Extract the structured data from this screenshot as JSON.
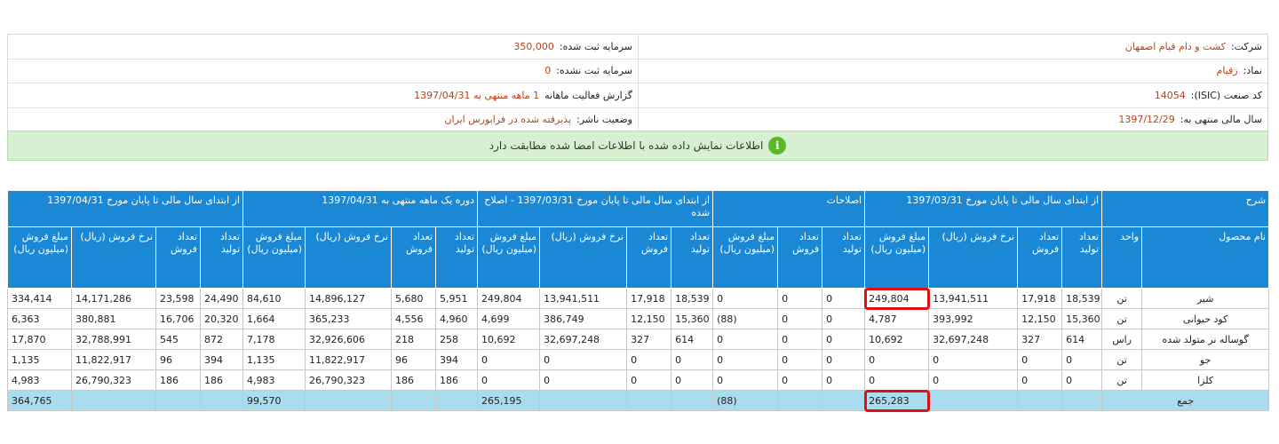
{
  "info": {
    "left": [
      {
        "label": "شرکت:",
        "value": "کشت و دام قیام اصفهان"
      },
      {
        "label": "نماد:",
        "value": "زقیام"
      },
      {
        "label": "کد صنعت (ISIC):",
        "value": "14054"
      },
      {
        "label": "سال مالی منتهی به:",
        "value": "1397/12/29"
      }
    ],
    "right": [
      {
        "label": "سرمایه ثبت شده:",
        "value": "350,000"
      },
      {
        "label": "سرمایه ثبت نشده:",
        "value": "0"
      },
      {
        "label": "گزارش فعالیت ماهانه",
        "value": "1 ماهه منتهی به 1397/04/31"
      },
      {
        "label": "وضعیت ناشر:",
        "value": "پذیرفته شده در فرابورس ایران"
      }
    ]
  },
  "banner": {
    "icon": "i",
    "text": "اطلاعات نمایش داده شده با اطلاعات امضا شده مطابقت دارد"
  },
  "table": {
    "groups": [
      {
        "label": "شرح",
        "span": 2
      },
      {
        "label": "از ابتدای سال مالی تا پایان مورخ 1397/03/31",
        "span": 4
      },
      {
        "label": "اصلاحات",
        "span": 3
      },
      {
        "label": "از ابتدای سال مالی تا پایان مورخ 1397/03/31 - اصلاح شده",
        "span": 4
      },
      {
        "label": "دوره یک ماهه منتهی به 1397/04/31",
        "span": 4
      },
      {
        "label": "از ابتدای سال مالی تا پایان مورخ 1397/04/31",
        "span": 4
      }
    ],
    "columns": [
      "نام محصول",
      "واحد",
      "تعداد تولید",
      "تعداد فروش",
      "نرخ فروش (ریال)",
      "مبلغ فروش (میلیون ریال)",
      "تعداد تولید",
      "تعداد فروش",
      "مبلغ فروش (میلیون ریال)",
      "تعداد تولید",
      "تعداد فروش",
      "نرخ فروش (ریال)",
      "مبلغ فروش (میلیون ریال)",
      "تعداد تولید",
      "تعداد فروش",
      "نرخ فروش (ریال)",
      "مبلغ فروش (میلیون ریال)",
      "تعداد تولید",
      "تعداد فروش",
      "نرخ فروش (ریال)",
      "مبلغ فروش (میلیون ریال)"
    ],
    "rows": [
      [
        "شیر",
        "تن",
        "18,539",
        "17,918",
        "13,941,511",
        "249,804",
        "0",
        "0",
        "0",
        "18,539",
        "17,918",
        "13,941,511",
        "249,804",
        "5,951",
        "5,680",
        "14,896,127",
        "84,610",
        "24,490",
        "23,598",
        "14,171,286",
        "334,414"
      ],
      [
        "کود حیوانی",
        "تن",
        "15,360",
        "12,150",
        "393,992",
        "4,787",
        "0",
        "0",
        "(88)",
        "15,360",
        "12,150",
        "386,749",
        "4,699",
        "4,960",
        "4,556",
        "365,233",
        "1,664",
        "20,320",
        "16,706",
        "380,881",
        "6,363"
      ],
      [
        "گوساله نر متولد شده",
        "راس",
        "614",
        "327",
        "32,697,248",
        "10,692",
        "0",
        "0",
        "0",
        "614",
        "327",
        "32,697,248",
        "10,692",
        "258",
        "218",
        "32,926,606",
        "7,178",
        "872",
        "545",
        "32,788,991",
        "17,870"
      ],
      [
        "جو",
        "تن",
        "0",
        "0",
        "0",
        "0",
        "0",
        "0",
        "0",
        "0",
        "0",
        "0",
        "0",
        "394",
        "96",
        "11,822,917",
        "1,135",
        "394",
        "96",
        "11,822,917",
        "1,135"
      ],
      [
        "کلزا",
        "تن",
        "0",
        "0",
        "0",
        "0",
        "0",
        "0",
        "0",
        "0",
        "0",
        "0",
        "0",
        "186",
        "186",
        "26,790,323",
        "4,983",
        "186",
        "186",
        "26,790,323",
        "4,983"
      ]
    ],
    "total": {
      "label": "جمع",
      "cells": [
        null,
        null,
        null,
        "265,283",
        null,
        null,
        "(88)",
        null,
        null,
        null,
        "265,195",
        null,
        null,
        null,
        "99,570",
        null,
        null,
        null,
        "364,765"
      ]
    }
  }
}
